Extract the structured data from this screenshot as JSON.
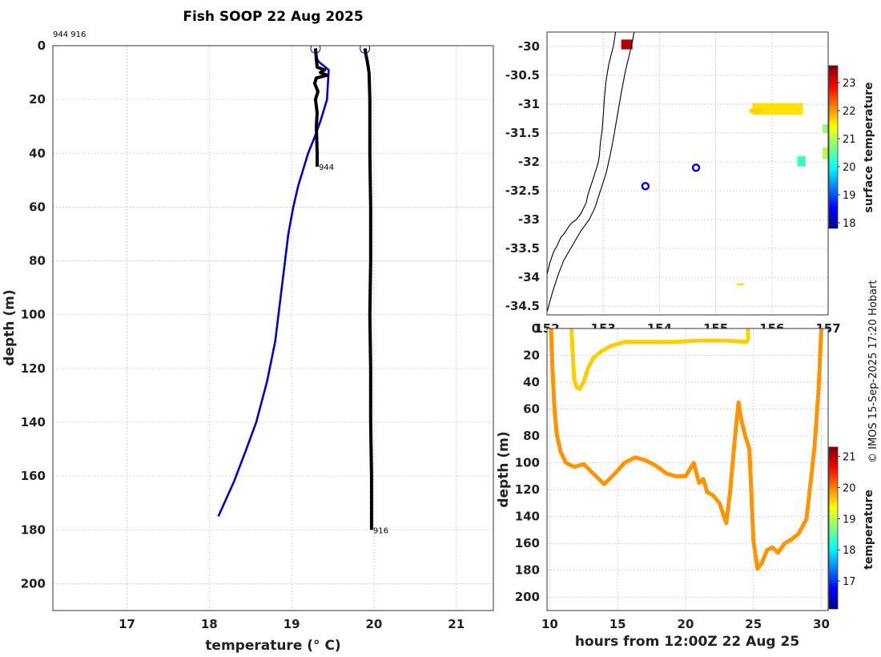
{
  "figure": {
    "title": "Fish SOOP 22 Aug 2025",
    "credit": "© IMOS 15-Sep-2025 17:20 Hobart",
    "profile_ids_label": "944 916"
  },
  "chart_data": [
    {
      "type": "line",
      "name": "temperature-depth-profiles",
      "xlabel": "temperature (° C)",
      "ylabel": "depth (m)",
      "xlim": [
        16.1,
        21.45
      ],
      "ylim": [
        210,
        0
      ],
      "xticks": [
        17,
        18,
        19,
        20,
        21
      ],
      "yticks": [
        0,
        20,
        40,
        60,
        80,
        100,
        120,
        140,
        160,
        180,
        200
      ],
      "grid": true,
      "series": [
        {
          "name": "blue-profile",
          "color": "#0000d0",
          "temperature": [
            19.29,
            19.31,
            19.33,
            19.45,
            19.43,
            19.4,
            19.35,
            19.28,
            19.2,
            19.15,
            19.08,
            19.02,
            18.96,
            18.92,
            18.88,
            18.8,
            18.7,
            18.57,
            18.45,
            18.3,
            18.11
          ],
          "depth": [
            1,
            5,
            6,
            9,
            20,
            23,
            28,
            34,
            40,
            45,
            52,
            60,
            70,
            80,
            90,
            110,
            125,
            140,
            150,
            162,
            175
          ]
        },
        {
          "name": "profile 944",
          "label": "944",
          "color": "#000000",
          "temperature": [
            19.29,
            19.3,
            19.31,
            19.4,
            19.35,
            19.43,
            19.3,
            19.28,
            19.32,
            19.29,
            19.31,
            19.3,
            19.31,
            19.31
          ],
          "depth": [
            1,
            5,
            8,
            9,
            10,
            11,
            12,
            14,
            17,
            20,
            25,
            30,
            40,
            45
          ]
        },
        {
          "name": "profile 916",
          "label": "916",
          "color": "#000000",
          "temperature": [
            19.89,
            19.9,
            19.92,
            19.94,
            19.95,
            19.95,
            19.96,
            19.96,
            19.95,
            19.96,
            19.96,
            19.97,
            19.97
          ],
          "depth": [
            1,
            3,
            6,
            10,
            20,
            40,
            60,
            80,
            100,
            120,
            140,
            160,
            180
          ]
        }
      ],
      "start_markers": [
        {
          "temperature": 19.29,
          "depth": 1
        },
        {
          "temperature": 19.89,
          "depth": 1
        }
      ]
    },
    {
      "type": "scatter",
      "name": "sst-map",
      "colorbar_label": "surface temperature",
      "xlim": [
        152.0,
        157.0
      ],
      "ylim": [
        -34.65,
        -29.75
      ],
      "xticks": [
        152,
        153,
        154,
        155,
        156,
        157
      ],
      "xtick_labels": [
        "152",
        "153",
        "154",
        "155",
        "156",
        "157"
      ],
      "yticks": [
        -30,
        -30.5,
        -31,
        -31.5,
        -32,
        -32.5,
        -33,
        -33.5,
        -34,
        -34.5
      ],
      "ytick_labels": [
        "-30",
        "-30.5",
        "-31",
        "-31.5",
        "-32",
        "-32.5",
        "-33",
        "-33.5",
        "-34",
        "-34.5"
      ],
      "colorbar_range": [
        17.8,
        23.6
      ],
      "colorbar_ticks": [
        18,
        19,
        20,
        21,
        22,
        23
      ],
      "coastline": {
        "lon": [
          153.22,
          153.18,
          153.1,
          153.05,
          153.02,
          153.0,
          152.98,
          152.95,
          152.93,
          152.9,
          152.85,
          152.8,
          152.75,
          152.72,
          152.7,
          152.65,
          152.6,
          152.52,
          152.45,
          152.4,
          152.3,
          152.25,
          152.18,
          152.12,
          152.05,
          152.0
        ],
        "lat": [
          -29.75,
          -30.0,
          -30.3,
          -30.6,
          -30.9,
          -31.2,
          -31.45,
          -31.65,
          -31.9,
          -32.05,
          -32.2,
          -32.35,
          -32.5,
          -32.6,
          -32.7,
          -32.8,
          -32.9,
          -33.0,
          -33.05,
          -33.1,
          -33.25,
          -33.3,
          -33.45,
          -33.55,
          -33.75,
          -33.95
        ]
      },
      "shelf_edge": {
        "lon": [
          153.55,
          153.5,
          153.4,
          153.32,
          153.25,
          153.18,
          153.12,
          153.05,
          152.95,
          152.85,
          152.75,
          152.6,
          152.45,
          152.3,
          152.2,
          152.1,
          152.0
        ],
        "lat": [
          -29.75,
          -30.0,
          -30.4,
          -30.8,
          -31.2,
          -31.6,
          -31.9,
          -32.2,
          -32.5,
          -32.8,
          -33.0,
          -33.2,
          -33.45,
          -33.7,
          -33.95,
          -34.25,
          -34.6
        ]
      },
      "sst_patches": [
        {
          "lon_min": 153.32,
          "lon_max": 153.52,
          "lat_min": -30.05,
          "lat_max": -29.88,
          "value": 23.3
        },
        {
          "lon_min": 155.65,
          "lon_max": 156.55,
          "lat_min": -31.18,
          "lat_max": -30.98,
          "value": 21.6
        },
        {
          "lon_min": 155.6,
          "lon_max": 155.8,
          "lat_min": -31.15,
          "lat_max": -31.08,
          "value": 21.7
        },
        {
          "lon_min": 156.9,
          "lon_max": 157.0,
          "lat_min": -31.5,
          "lat_max": -31.35,
          "value": 20.8
        },
        {
          "lon_min": 156.9,
          "lon_max": 157.0,
          "lat_min": -31.95,
          "lat_max": -31.75,
          "value": 21.0
        },
        {
          "lon_min": 156.45,
          "lon_max": 156.6,
          "lat_min": -32.08,
          "lat_max": -31.9,
          "value": 20.3
        },
        {
          "lon_min": 155.38,
          "lon_max": 155.5,
          "lat_min": -34.14,
          "lat_max": -34.1,
          "value": 21.6
        }
      ],
      "positions": [
        {
          "lon": 154.65,
          "lat": -32.1
        },
        {
          "lon": 153.75,
          "lat": -32.42
        }
      ]
    },
    {
      "type": "scatter",
      "name": "time-depth-section",
      "xlabel": "hours from 12:00Z 22 Aug 25",
      "ylabel": "depth (m)",
      "colorbar_label": "temperature",
      "xlim": [
        9.8,
        30.5
      ],
      "ylim": [
        210,
        0
      ],
      "xticks": [
        10,
        15,
        20,
        25,
        30
      ],
      "yticks": [
        0,
        20,
        40,
        60,
        80,
        100,
        120,
        140,
        160,
        180,
        200
      ],
      "colorbar_range": [
        16.1,
        21.3
      ],
      "colorbar_ticks": [
        17,
        18,
        19,
        20,
        21
      ],
      "series": [
        {
          "name": "tow-1",
          "value": 19.6,
          "hours": [
            11.6,
            11.7,
            11.8,
            12.0,
            12.2,
            12.5,
            12.8,
            13.2,
            13.8,
            14.5,
            15.5,
            17.0,
            19.0,
            21.0,
            23.0,
            24.5,
            24.6,
            24.6
          ],
          "depth": [
            0,
            20,
            38,
            44,
            45,
            40,
            30,
            22,
            17,
            13,
            10,
            10,
            10,
            9,
            9,
            10,
            8,
            0
          ]
        },
        {
          "name": "tow-2",
          "value": 19.9,
          "hours": [
            10.1,
            10.2,
            10.35,
            10.5,
            10.8,
            11.2,
            11.8,
            12.5,
            13.2,
            14.0,
            14.8,
            15.5,
            16.3,
            17.0,
            17.8,
            18.6,
            19.3,
            20.0,
            20.6,
            21.0,
            21.3,
            21.6,
            22.0,
            22.5,
            23.0,
            23.3,
            23.6,
            23.9,
            24.1,
            24.4,
            24.7,
            25.0,
            25.3,
            25.6,
            26.0,
            26.4,
            26.8,
            27.3,
            27.8,
            28.3,
            28.9,
            29.2,
            29.5,
            29.8,
            30.0
          ],
          "depth": [
            0,
            30,
            60,
            78,
            92,
            100,
            103,
            101,
            108,
            116,
            108,
            100,
            96,
            98,
            102,
            108,
            110,
            110,
            100,
            115,
            112,
            122,
            124,
            130,
            145,
            120,
            85,
            55,
            68,
            80,
            90,
            158,
            179,
            175,
            165,
            163,
            167,
            160,
            157,
            153,
            142,
            115,
            88,
            45,
            0
          ]
        }
      ]
    }
  ]
}
